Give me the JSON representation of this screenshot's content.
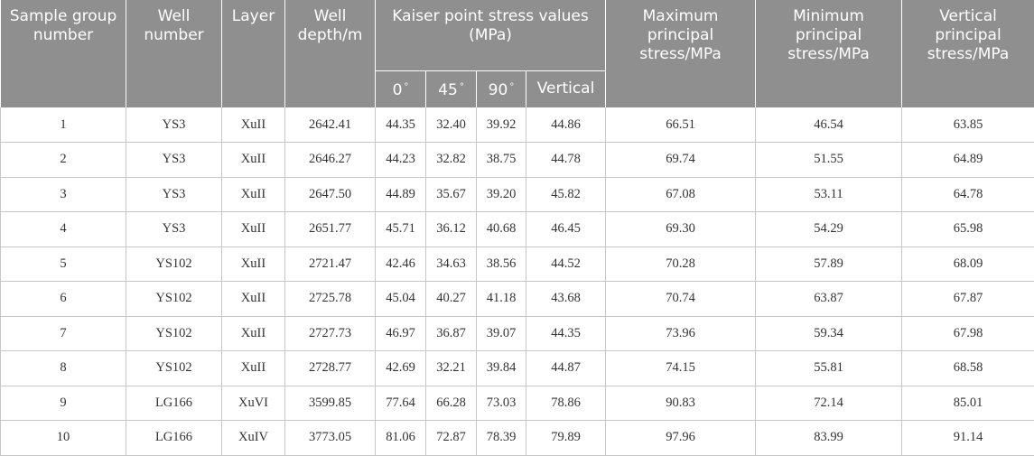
{
  "headers": {
    "group": "Sample group number",
    "well": "Well number",
    "layer": "Layer",
    "depth": "Well depth/m",
    "kaiser": "Kaiser point stress values (MPa)",
    "k0": "0",
    "k45": "45",
    "k90": "90",
    "kvert": "Vertical",
    "max": "Maximum principal stress/MPa",
    "min": "Minimum principal stress/MPa",
    "vertical": "Vertical principal stress/MPa",
    "degree_mark": "°"
  },
  "rows": [
    {
      "group": "1",
      "well": "YS3",
      "layer": "XuII",
      "depth": "2642.41",
      "k0": "44.35",
      "k45": "32.40",
      "k90": "39.92",
      "kvert": "44.86",
      "max": "66.51",
      "min": "46.54",
      "vertical": "63.85"
    },
    {
      "group": "2",
      "well": "YS3",
      "layer": "XuII",
      "depth": "2646.27",
      "k0": "44.23",
      "k45": "32.82",
      "k90": "38.75",
      "kvert": "44.78",
      "max": "69.74",
      "min": "51.55",
      "vertical": "64.89"
    },
    {
      "group": "3",
      "well": "YS3",
      "layer": "XuII",
      "depth": "2647.50",
      "k0": "44.89",
      "k45": "35.67",
      "k90": "39.20",
      "kvert": "45.82",
      "max": "67.08",
      "min": "53.11",
      "vertical": "64.78"
    },
    {
      "group": "4",
      "well": "YS3",
      "layer": "XuII",
      "depth": "2651.77",
      "k0": "45.71",
      "k45": "36.12",
      "k90": "40.68",
      "kvert": "46.45",
      "max": "69.30",
      "min": "54.29",
      "vertical": "65.98"
    },
    {
      "group": "5",
      "well": "YS102",
      "layer": "XuII",
      "depth": "2721.47",
      "k0": "42.46",
      "k45": "34.63",
      "k90": "38.56",
      "kvert": "44.52",
      "max": "70.28",
      "min": "57.89",
      "vertical": "68.09"
    },
    {
      "group": "6",
      "well": "YS102",
      "layer": "XuII",
      "depth": "2725.78",
      "k0": "45.04",
      "k45": "40.27",
      "k90": "41.18",
      "kvert": "43.68",
      "max": "70.74",
      "min": "63.87",
      "vertical": "67.87"
    },
    {
      "group": "7",
      "well": "YS102",
      "layer": "XuII",
      "depth": "2727.73",
      "k0": "46.97",
      "k45": "36.87",
      "k90": "39.07",
      "kvert": "44.35",
      "max": "73.96",
      "min": "59.34",
      "vertical": "67.98"
    },
    {
      "group": "8",
      "well": "YS102",
      "layer": "XuII",
      "depth": "2728.77",
      "k0": "42.69",
      "k45": "32.21",
      "k90": "39.84",
      "kvert": "44.87",
      "max": "74.15",
      "min": "55.81",
      "vertical": "68.58"
    },
    {
      "group": "9",
      "well": "LG166",
      "layer": "XuVI",
      "depth": "3599.85",
      "k0": "77.64",
      "k45": "66.28",
      "k90": "73.03",
      "kvert": "78.86",
      "max": "90.83",
      "min": "72.14",
      "vertical": "85.01"
    },
    {
      "group": "10",
      "well": "LG166",
      "layer": "XuIV",
      "depth": "3773.05",
      "k0": "81.06",
      "k45": "72.87",
      "k90": "78.39",
      "kvert": "79.89",
      "max": "97.96",
      "min": "83.99",
      "vertical": "91.14"
    }
  ]
}
